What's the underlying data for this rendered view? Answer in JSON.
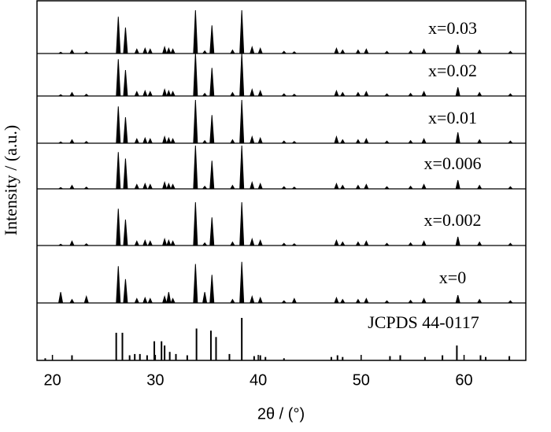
{
  "chart_data": {
    "type": "xrd",
    "xlabel": "2θ / (°)",
    "ylabel": "Intensity / (a.u.)",
    "xlim": [
      18.5,
      66
    ],
    "xticks": [
      20,
      30,
      40,
      50,
      60
    ],
    "x": [
      20.8,
      21.9,
      23.3,
      26.4,
      27.1,
      28.2,
      29.0,
      29.5,
      30.9,
      31.3,
      31.7,
      33.9,
      34.8,
      35.5,
      37.5,
      38.4,
      39.4,
      40.2,
      42.5,
      43.5,
      47.6,
      48.2,
      49.7,
      50.5,
      52.5,
      54.8,
      56.1,
      59.4,
      61.5,
      64.5
    ],
    "series": [
      {
        "name": "x=0.03",
        "values": [
          3,
          8,
          4,
          85,
          60,
          10,
          12,
          10,
          15,
          12,
          10,
          100,
          6,
          65,
          8,
          100,
          15,
          12,
          5,
          4,
          12,
          8,
          8,
          10,
          5,
          6,
          10,
          20,
          8,
          5
        ]
      },
      {
        "name": "x=0.02",
        "values": [
          3,
          8,
          4,
          85,
          60,
          10,
          12,
          10,
          15,
          12,
          10,
          100,
          6,
          65,
          8,
          100,
          15,
          12,
          5,
          4,
          12,
          8,
          8,
          10,
          5,
          6,
          10,
          20,
          8,
          5
        ]
      },
      {
        "name": "x=0.01",
        "values": [
          3,
          8,
          4,
          85,
          60,
          10,
          12,
          10,
          15,
          12,
          10,
          100,
          6,
          65,
          8,
          100,
          15,
          12,
          5,
          4,
          15,
          8,
          8,
          10,
          5,
          6,
          10,
          25,
          8,
          5
        ]
      },
      {
        "name": "x=0.006",
        "values": [
          3,
          8,
          4,
          85,
          70,
          10,
          12,
          10,
          15,
          12,
          10,
          100,
          6,
          65,
          8,
          100,
          15,
          12,
          5,
          4,
          12,
          8,
          8,
          10,
          5,
          6,
          10,
          20,
          8,
          5
        ]
      },
      {
        "name": "x=0.002",
        "values": [
          3,
          10,
          4,
          85,
          60,
          10,
          12,
          10,
          15,
          12,
          10,
          100,
          6,
          65,
          8,
          100,
          15,
          12,
          5,
          4,
          12,
          8,
          8,
          10,
          5,
          6,
          10,
          20,
          8,
          5
        ]
      },
      {
        "name": "x=0",
        "values": [
          25,
          8,
          15,
          85,
          55,
          10,
          12,
          10,
          15,
          25,
          10,
          90,
          25,
          65,
          8,
          95,
          15,
          12,
          5,
          10,
          12,
          8,
          8,
          10,
          5,
          6,
          10,
          18,
          8,
          5
        ]
      }
    ],
    "reference": {
      "name": "JCPDS 44-0117",
      "x": [
        19.3,
        21.9,
        26.2,
        26.8,
        27.5,
        28.0,
        28.5,
        29.2,
        29.9,
        30.6,
        30.9,
        31.4,
        32.0,
        33.1,
        34.0,
        35.4,
        35.9,
        37.2,
        38.4,
        39.6,
        40.2,
        40.7,
        42.5,
        47.1,
        47.7,
        48.2,
        52.8,
        53.8,
        56.2,
        57.9,
        59.3,
        61.6,
        62.1,
        64.4
      ],
      "values": [
        5,
        12,
        65,
        65,
        12,
        15,
        15,
        12,
        45,
        45,
        35,
        20,
        15,
        12,
        75,
        70,
        55,
        15,
        100,
        10,
        12,
        8,
        5,
        8,
        12,
        8,
        10,
        12,
        8,
        12,
        35,
        12,
        8,
        10
      ]
    }
  }
}
